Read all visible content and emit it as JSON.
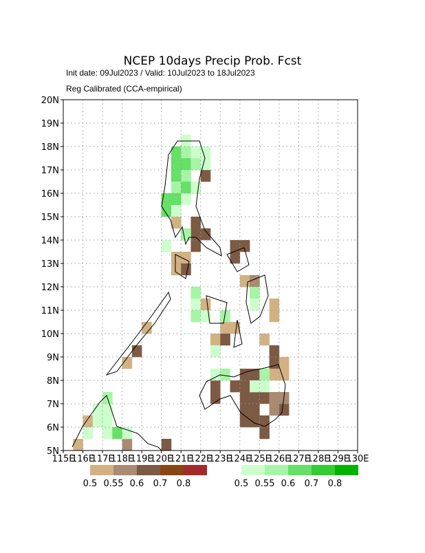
{
  "chart_data": {
    "type": "gridmap",
    "title": "NCEP 10days Precip Prob. Fcst",
    "subtitle": "Init date: 09Jul2023 / Valid: 10Jul2023 to 18Jul2023",
    "note": "Reg Calibrated (CCA-empirical)",
    "xlim": [
      115,
      130
    ],
    "ylim": [
      5,
      20
    ],
    "grid": true,
    "xticks": [
      {
        "value": 115,
        "label": "115E"
      },
      {
        "value": 116,
        "label": "116E"
      },
      {
        "value": 117,
        "label": "117E"
      },
      {
        "value": 118,
        "label": "118E"
      },
      {
        "value": 119,
        "label": "119E"
      },
      {
        "value": 120,
        "label": "120E"
      },
      {
        "value": 121,
        "label": "121E"
      },
      {
        "value": 122,
        "label": "122E"
      },
      {
        "value": 123,
        "label": "123E"
      },
      {
        "value": 124,
        "label": "124E"
      },
      {
        "value": 125,
        "label": "125E"
      },
      {
        "value": 126,
        "label": "126E"
      },
      {
        "value": 127,
        "label": "127E"
      },
      {
        "value": 128,
        "label": "128E"
      },
      {
        "value": 129,
        "label": "129E"
      },
      {
        "value": 130,
        "label": "130E"
      }
    ],
    "yticks": [
      {
        "value": 5,
        "label": "5N"
      },
      {
        "value": 6,
        "label": "6N"
      },
      {
        "value": 7,
        "label": "7N"
      },
      {
        "value": 8,
        "label": "8N"
      },
      {
        "value": 9,
        "label": "9N"
      },
      {
        "value": 10,
        "label": "10N"
      },
      {
        "value": 11,
        "label": "11N"
      },
      {
        "value": 12,
        "label": "12N"
      },
      {
        "value": 13,
        "label": "13N"
      },
      {
        "value": 14,
        "label": "14N"
      },
      {
        "value": 15,
        "label": "15N"
      },
      {
        "value": 16,
        "label": "16N"
      },
      {
        "value": 17,
        "label": "17N"
      },
      {
        "value": 18,
        "label": "18N"
      },
      {
        "value": 19,
        "label": "19N"
      },
      {
        "value": 20,
        "label": "20N"
      }
    ],
    "cell_size": 0.5,
    "series": [
      {
        "colors": [
          "#d2b183",
          "#a98a72",
          "#7d5a44",
          "#8b4513",
          "#a52a2a"
        ],
        "thresholds": [
          0.5,
          0.55,
          0.6,
          0.7,
          0.8
        ],
        "lon": [
          122,
          121.5,
          120.5,
          121.5,
          121,
          121.5,
          122,
          120.5,
          121,
          121.5,
          120.5,
          121,
          123.5,
          124,
          123.5,
          124,
          124.5,
          122,
          123,
          123.5,
          122.5,
          123,
          125.5,
          125.5,
          125,
          125.5,
          125.5,
          126,
          125.5,
          126,
          122.5,
          122.5,
          123.5,
          124,
          124,
          124.5,
          124.5,
          125,
          124,
          124.5,
          124,
          124.5,
          125,
          125,
          125.5,
          125.5,
          126,
          126,
          118.5,
          118,
          119,
          116,
          115.5,
          118,
          120,
          124
        ],
        "lat": [
          16.5,
          16,
          14.5,
          14.5,
          14,
          14,
          14,
          13,
          13,
          13.5,
          12.5,
          12.5,
          13.5,
          13.5,
          13,
          12,
          12,
          11,
          10,
          10,
          9.5,
          9.5,
          11,
          10.5,
          9.5,
          9,
          8.5,
          8.5,
          8,
          8,
          7.5,
          7,
          7.5,
          7.5,
          8,
          8,
          7,
          7,
          6.5,
          6.5,
          6,
          6,
          6,
          5.5,
          7,
          6.5,
          6.5,
          7,
          9,
          8.5,
          10,
          6,
          5,
          5,
          5,
          7
        ],
        "values": [
          0.62,
          0.52,
          0.52,
          0.65,
          0.62,
          0.65,
          0.62,
          0.52,
          0.52,
          0.65,
          0.52,
          0.62,
          0.65,
          0.65,
          0.62,
          0.52,
          0.57,
          0.52,
          0.52,
          0.52,
          0.52,
          0.62,
          0.52,
          0.52,
          0.52,
          0.65,
          0.62,
          0.52,
          0.52,
          0.52,
          0.62,
          0.62,
          0.62,
          0.65,
          0.65,
          0.65,
          0.65,
          0.65,
          0.65,
          0.65,
          0.65,
          0.65,
          0.65,
          0.65,
          0.57,
          0.57,
          0.62,
          0.57,
          0.62,
          0.52,
          0.52,
          0.52,
          0.52,
          0.57,
          0.65,
          0.65
        ]
      },
      {
        "colors": [
          "#ccffcc",
          "#a6f5a6",
          "#66e066",
          "#33cc33",
          "#00b400"
        ],
        "thresholds": [
          0.5,
          0.55,
          0.6,
          0.7,
          0.8
        ],
        "lon": [
          120.5,
          121,
          121.5,
          120.5,
          121,
          121.5,
          122,
          120.5,
          121,
          120.5,
          121,
          121.5,
          120,
          120.5,
          121,
          120,
          120.5,
          121,
          120,
          121.5,
          121.5,
          121.5,
          122,
          123,
          122.5,
          122.5,
          123,
          124.5,
          125,
          125,
          124.5,
          124.5,
          116.5,
          117,
          117,
          116.5,
          117,
          116,
          117.5,
          118,
          117,
          121,
          122
        ],
        "lat": [
          17.5,
          17.5,
          17.5,
          17,
          17,
          17,
          17,
          16.5,
          16.5,
          16,
          16,
          16,
          15.5,
          15.5,
          15.5,
          15,
          15,
          14,
          13.5,
          11.5,
          11,
          10.5,
          10.5,
          10.5,
          9,
          8,
          8,
          7.5,
          8,
          7.5,
          11.5,
          11,
          6.5,
          6.5,
          6,
          6,
          5.5,
          5.5,
          5.5,
          5.5,
          7,
          18,
          17.5
        ],
        "values": [
          0.62,
          0.57,
          0.52,
          0.62,
          0.62,
          0.57,
          0.52,
          0.62,
          0.57,
          0.57,
          0.62,
          0.52,
          0.65,
          0.65,
          0.52,
          0.62,
          0.52,
          0.57,
          0.52,
          0.57,
          0.52,
          0.57,
          0.52,
          0.57,
          0.52,
          0.52,
          0.57,
          0.52,
          0.57,
          0.52,
          0.57,
          0.52,
          0.52,
          0.52,
          0.52,
          0.52,
          0.52,
          0.52,
          0.62,
          0.52,
          0.57,
          0.52,
          0.52
        ]
      }
    ]
  }
}
